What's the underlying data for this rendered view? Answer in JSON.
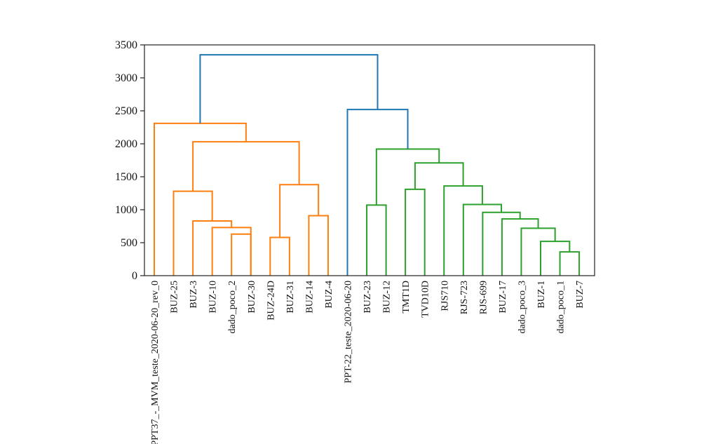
{
  "chart_data": {
    "type": "dendrogram",
    "title": "",
    "xlabel": "",
    "ylabel": "",
    "ylim": [
      0,
      3500
    ],
    "yticks": [
      0,
      500,
      1000,
      1500,
      2000,
      2500,
      3000,
      3500
    ],
    "grid": false,
    "colors": {
      "cluster_orange": "#ff7f0e",
      "cluster_green": "#2ca02c",
      "root_blue": "#1f77b4"
    },
    "leaves": [
      "PPT37_-_MVM_teste_2020-06-20_rev_0",
      "BUZ-25",
      "BUZ-3",
      "BUZ-10",
      "dado_poco_2",
      "BUZ-30",
      "BUZ-24D",
      "BUZ-31",
      "BUZ-14",
      "BUZ-4",
      "PPT-22_teste_2020-06-20",
      "BUZ-23",
      "BUZ-12",
      "TMT1D",
      "TVD10D",
      "RJS710",
      "RJS-723",
      "RJS-699",
      "BUZ-17",
      "dado_poco_3",
      "BUZ-1",
      "dado_poco_1",
      "BUZ-7"
    ],
    "merges": [
      {
        "a": "BUZ-10",
        "b": "BUZ-30",
        "height": 730,
        "color": "cluster_orange"
      },
      {
        "a": "BUZ-3",
        "b": "BUZ-10",
        "height": 830,
        "color": "cluster_orange"
      },
      {
        "a": "BUZ-25",
        "b": "BUZ-3",
        "height": 1280,
        "color": "cluster_orange"
      },
      {
        "a": "dado_poco_2",
        "b": "BUZ-30",
        "height": 630,
        "color": "cluster_orange"
      },
      {
        "a": "BUZ-24D",
        "b": "BUZ-31",
        "height": 580,
        "color": "cluster_orange"
      },
      {
        "a": "BUZ-14",
        "b": "BUZ-4",
        "height": 910,
        "color": "cluster_orange"
      },
      {
        "a": "BUZ-24D",
        "b": "BUZ-14",
        "height": 1380,
        "color": "cluster_orange"
      },
      {
        "a": "BUZ-25",
        "b": "BUZ-24D",
        "height": 2030,
        "color": "cluster_orange"
      },
      {
        "a": "PPT37_-_MVM_teste_2020-06-20_rev_0",
        "b": "BUZ-25",
        "height": 2310,
        "color": "cluster_orange"
      },
      {
        "a": "BUZ-23",
        "b": "BUZ-12",
        "height": 1070,
        "color": "cluster_green"
      },
      {
        "a": "TMT1D",
        "b": "TVD10D",
        "height": 1310,
        "color": "cluster_green"
      },
      {
        "a": "dado_poco_1",
        "b": "BUZ-7",
        "height": 360,
        "color": "cluster_green"
      },
      {
        "a": "BUZ-1",
        "b": "dado_poco_1",
        "height": 520,
        "color": "cluster_green"
      },
      {
        "a": "dado_poco_3",
        "b": "BUZ-1",
        "height": 720,
        "color": "cluster_green"
      },
      {
        "a": "BUZ-17",
        "b": "dado_poco_3",
        "height": 860,
        "color": "cluster_green"
      },
      {
        "a": "RJS-699",
        "b": "BUZ-17",
        "height": 960,
        "color": "cluster_green"
      },
      {
        "a": "RJS-723",
        "b": "RJS-699",
        "height": 1080,
        "color": "cluster_green"
      },
      {
        "a": "RJS710",
        "b": "RJS-723",
        "height": 1360,
        "color": "cluster_green"
      },
      {
        "a": "TMT1D",
        "b": "RJS710",
        "height": 1710,
        "color": "cluster_green"
      },
      {
        "a": "BUZ-23",
        "b": "TMT1D",
        "height": 1920,
        "color": "cluster_green"
      },
      {
        "a": "PPT-22_teste_2020-06-20",
        "b": "BUZ-23",
        "height": 2520,
        "color": "root_blue"
      },
      {
        "a": "PPT37_-_MVM_teste_2020-06-20_rev_0",
        "b": "PPT-22_teste_2020-06-20",
        "height": 3350,
        "color": "root_blue"
      }
    ]
  }
}
